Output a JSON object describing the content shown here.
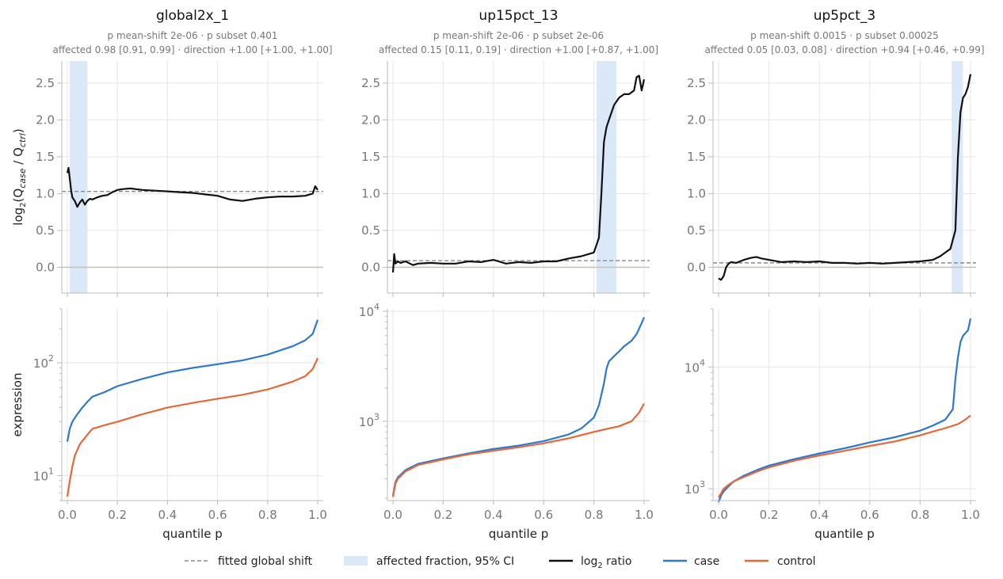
{
  "chart_data": [
    {
      "type": "line",
      "panel": "ratio",
      "title": "global2x_1",
      "subtitle_line1": "p mean-shift 2e-06 · p subset 0.401",
      "subtitle_line2": "affected 0.98 [0.91, 0.99] · direction +1.00 [+1.00, +1.00]",
      "ylabel": "log2(Qcase / Qctrl)",
      "ylim": [
        -0.35,
        2.8
      ],
      "yticks": [
        "0.0",
        "0.5",
        "1.0",
        "1.5",
        "2.0",
        "2.5"
      ],
      "ytick_values": [
        0,
        0.5,
        1.0,
        1.5,
        2.0,
        2.5
      ],
      "fitted_shift": 1.03,
      "ci_band": [
        0.01,
        0.08
      ],
      "series": [
        {
          "name": "log2 ratio",
          "x": [
            0.0,
            0.005,
            0.01,
            0.015,
            0.02,
            0.03,
            0.04,
            0.05,
            0.06,
            0.07,
            0.08,
            0.09,
            0.1,
            0.12,
            0.14,
            0.16,
            0.18,
            0.2,
            0.22,
            0.25,
            0.3,
            0.35,
            0.4,
            0.45,
            0.5,
            0.55,
            0.6,
            0.65,
            0.7,
            0.75,
            0.8,
            0.85,
            0.9,
            0.95,
            0.98,
            0.99,
            1.0
          ],
          "y": [
            1.28,
            1.35,
            1.2,
            1.05,
            0.95,
            0.9,
            0.82,
            0.88,
            0.92,
            0.85,
            0.9,
            0.93,
            0.92,
            0.95,
            0.97,
            0.98,
            1.02,
            1.05,
            1.06,
            1.07,
            1.05,
            1.04,
            1.03,
            1.02,
            1.01,
            0.99,
            0.97,
            0.92,
            0.9,
            0.93,
            0.95,
            0.96,
            0.96,
            0.97,
            1.0,
            1.1,
            1.05
          ]
        }
      ]
    },
    {
      "type": "line",
      "panel": "ratio",
      "title": "up15pct_13",
      "subtitle_line1": "p mean-shift 2e-06 · p subset 2e-06",
      "subtitle_line2": "affected 0.15 [0.11, 0.19] · direction +1.00 [+0.87, +1.00]",
      "ylim": [
        -0.35,
        2.8
      ],
      "yticks": [
        "0.0",
        "0.5",
        "1.0",
        "1.5",
        "2.0",
        "2.5"
      ],
      "ytick_values": [
        0,
        0.5,
        1.0,
        1.5,
        2.0,
        2.5
      ],
      "fitted_shift": 0.09,
      "ci_band": [
        0.81,
        0.89
      ],
      "series": [
        {
          "name": "log2 ratio",
          "x": [
            0.0,
            0.005,
            0.01,
            0.02,
            0.03,
            0.05,
            0.08,
            0.1,
            0.15,
            0.2,
            0.25,
            0.3,
            0.35,
            0.4,
            0.45,
            0.5,
            0.55,
            0.6,
            0.65,
            0.7,
            0.75,
            0.78,
            0.8,
            0.82,
            0.83,
            0.84,
            0.85,
            0.86,
            0.87,
            0.88,
            0.9,
            0.92,
            0.94,
            0.96,
            0.97,
            0.98,
            0.99,
            1.0
          ],
          "y": [
            -0.07,
            0.18,
            0.05,
            0.08,
            0.06,
            0.08,
            0.03,
            0.05,
            0.06,
            0.05,
            0.05,
            0.08,
            0.07,
            0.1,
            0.05,
            0.07,
            0.06,
            0.08,
            0.08,
            0.12,
            0.15,
            0.18,
            0.2,
            0.4,
            1.0,
            1.7,
            1.9,
            2.0,
            2.1,
            2.2,
            2.3,
            2.35,
            2.35,
            2.4,
            2.58,
            2.6,
            2.4,
            2.55
          ]
        }
      ]
    },
    {
      "type": "line",
      "panel": "ratio",
      "title": "up5pct_3",
      "subtitle_line1": "p mean-shift 0.0015 · p subset 0.00025",
      "subtitle_line2": "affected 0.05 [0.03, 0.08] · direction +0.94 [+0.46, +0.99]",
      "ylim": [
        -0.35,
        2.8
      ],
      "yticks": [
        "0.0",
        "0.5",
        "1.0",
        "1.5",
        "2.0",
        "2.5"
      ],
      "ytick_values": [
        0,
        0.5,
        1.0,
        1.5,
        2.0,
        2.5
      ],
      "fitted_shift": 0.06,
      "ci_band": [
        0.925,
        0.97
      ],
      "series": [
        {
          "name": "log2 ratio",
          "x": [
            0.0,
            0.01,
            0.02,
            0.03,
            0.04,
            0.05,
            0.07,
            0.1,
            0.13,
            0.15,
            0.17,
            0.2,
            0.25,
            0.3,
            0.35,
            0.4,
            0.45,
            0.5,
            0.55,
            0.6,
            0.65,
            0.7,
            0.75,
            0.8,
            0.85,
            0.88,
            0.9,
            0.92,
            0.94,
            0.95,
            0.96,
            0.97,
            0.98,
            0.99,
            1.0
          ],
          "y": [
            -0.15,
            -0.17,
            -0.12,
            0.0,
            0.05,
            0.07,
            0.06,
            0.1,
            0.13,
            0.14,
            0.12,
            0.1,
            0.07,
            0.08,
            0.07,
            0.08,
            0.06,
            0.06,
            0.05,
            0.06,
            0.05,
            0.06,
            0.07,
            0.08,
            0.1,
            0.15,
            0.2,
            0.25,
            0.5,
            1.5,
            2.1,
            2.3,
            2.35,
            2.45,
            2.62
          ]
        }
      ]
    },
    {
      "type": "line",
      "panel": "expression",
      "ylabel": "expression",
      "xlabel": "quantile p",
      "xticks": [
        "0.0",
        "0.2",
        "0.4",
        "0.6",
        "0.8",
        "1.0"
      ],
      "yscale": "log",
      "ylim": [
        6,
        300
      ],
      "ytick_decades": [
        10,
        100
      ],
      "ytick_exponents": [
        "1",
        "2"
      ],
      "series": [
        {
          "name": "case",
          "x": [
            0.0,
            0.01,
            0.02,
            0.04,
            0.06,
            0.08,
            0.1,
            0.15,
            0.2,
            0.3,
            0.4,
            0.5,
            0.6,
            0.7,
            0.8,
            0.9,
            0.95,
            0.98,
            1.0
          ],
          "y": [
            20,
            26,
            30,
            35,
            40,
            45,
            50,
            55,
            62,
            72,
            82,
            90,
            97,
            105,
            118,
            140,
            158,
            180,
            240
          ]
        },
        {
          "name": "control",
          "x": [
            0.0,
            0.01,
            0.02,
            0.03,
            0.05,
            0.08,
            0.1,
            0.15,
            0.2,
            0.3,
            0.4,
            0.5,
            0.6,
            0.7,
            0.8,
            0.9,
            0.95,
            0.98,
            1.0
          ],
          "y": [
            6.5,
            9,
            12,
            15,
            19,
            23,
            26,
            28,
            30,
            35,
            40,
            44,
            48,
            52,
            58,
            68,
            76,
            88,
            110
          ]
        }
      ]
    },
    {
      "type": "line",
      "panel": "expression",
      "xlabel": "quantile p",
      "xticks": [
        "0.0",
        "0.2",
        "0.4",
        "0.6",
        "0.8",
        "1.0"
      ],
      "yscale": "log",
      "ylim": [
        190,
        10500
      ],
      "ytick_decades": [
        1000,
        10000
      ],
      "ytick_exponents": [
        "3",
        "4"
      ],
      "series": [
        {
          "name": "case",
          "x": [
            0.0,
            0.01,
            0.02,
            0.05,
            0.1,
            0.2,
            0.3,
            0.4,
            0.5,
            0.6,
            0.7,
            0.75,
            0.8,
            0.82,
            0.84,
            0.85,
            0.86,
            0.88,
            0.9,
            0.92,
            0.95,
            0.97,
            0.99,
            1.0
          ],
          "y": [
            210,
            280,
            310,
            360,
            410,
            460,
            510,
            560,
            600,
            660,
            760,
            860,
            1080,
            1400,
            2200,
            3000,
            3500,
            3900,
            4300,
            4800,
            5400,
            6200,
            7800,
            8800
          ]
        },
        {
          "name": "control",
          "x": [
            0.0,
            0.01,
            0.02,
            0.05,
            0.1,
            0.2,
            0.3,
            0.4,
            0.5,
            0.6,
            0.7,
            0.8,
            0.85,
            0.9,
            0.95,
            0.98,
            1.0
          ],
          "y": [
            205,
            270,
            300,
            350,
            400,
            450,
            500,
            540,
            580,
            630,
            700,
            800,
            850,
            900,
            1000,
            1200,
            1450
          ]
        }
      ]
    },
    {
      "type": "line",
      "panel": "expression",
      "xlabel": "quantile p",
      "xticks": [
        "0.0",
        "0.2",
        "0.4",
        "0.6",
        "0.8",
        "1.0"
      ],
      "yscale": "log",
      "ylim": [
        800,
        30000
      ],
      "ytick_decades": [
        1000,
        10000
      ],
      "ytick_exponents": [
        "3",
        "4"
      ],
      "series": [
        {
          "name": "case",
          "x": [
            0.0,
            0.01,
            0.02,
            0.04,
            0.06,
            0.1,
            0.15,
            0.2,
            0.3,
            0.4,
            0.5,
            0.6,
            0.7,
            0.8,
            0.85,
            0.9,
            0.93,
            0.94,
            0.95,
            0.96,
            0.97,
            0.98,
            0.99,
            1.0
          ],
          "y": [
            780,
            880,
            950,
            1050,
            1150,
            1280,
            1420,
            1550,
            1750,
            1950,
            2150,
            2400,
            2650,
            3000,
            3300,
            3700,
            4500,
            8000,
            12000,
            16000,
            18000,
            19000,
            20000,
            25000
          ]
        },
        {
          "name": "control",
          "x": [
            0.0,
            0.01,
            0.02,
            0.04,
            0.06,
            0.1,
            0.15,
            0.2,
            0.3,
            0.4,
            0.5,
            0.6,
            0.7,
            0.8,
            0.85,
            0.9,
            0.95,
            0.98,
            1.0
          ],
          "y": [
            850,
            920,
            1000,
            1080,
            1150,
            1250,
            1380,
            1500,
            1700,
            1880,
            2050,
            2250,
            2450,
            2750,
            2950,
            3150,
            3400,
            3700,
            4000
          ]
        }
      ]
    }
  ],
  "legend": {
    "items": [
      {
        "label": "fitted global shift",
        "kind": "dashed",
        "color": "#888888"
      },
      {
        "label": "affected fraction, 95% CI",
        "kind": "band",
        "color": "#dbe8f8"
      },
      {
        "label": "log2 ratio",
        "kind": "line",
        "color": "#111111"
      },
      {
        "label": "case",
        "kind": "line",
        "color": "#2f78cf"
      },
      {
        "label": "control",
        "kind": "line",
        "color": "#e4693a"
      }
    ]
  },
  "colors": {
    "ratio": "#111111",
    "case": "#2f78cf",
    "control": "#e4693a",
    "band": "#dbe8f8",
    "fitted": "#888888",
    "zero_line": "#c9c4b4",
    "grid": "#e6e6e6",
    "axis": "#bbbbbb"
  }
}
